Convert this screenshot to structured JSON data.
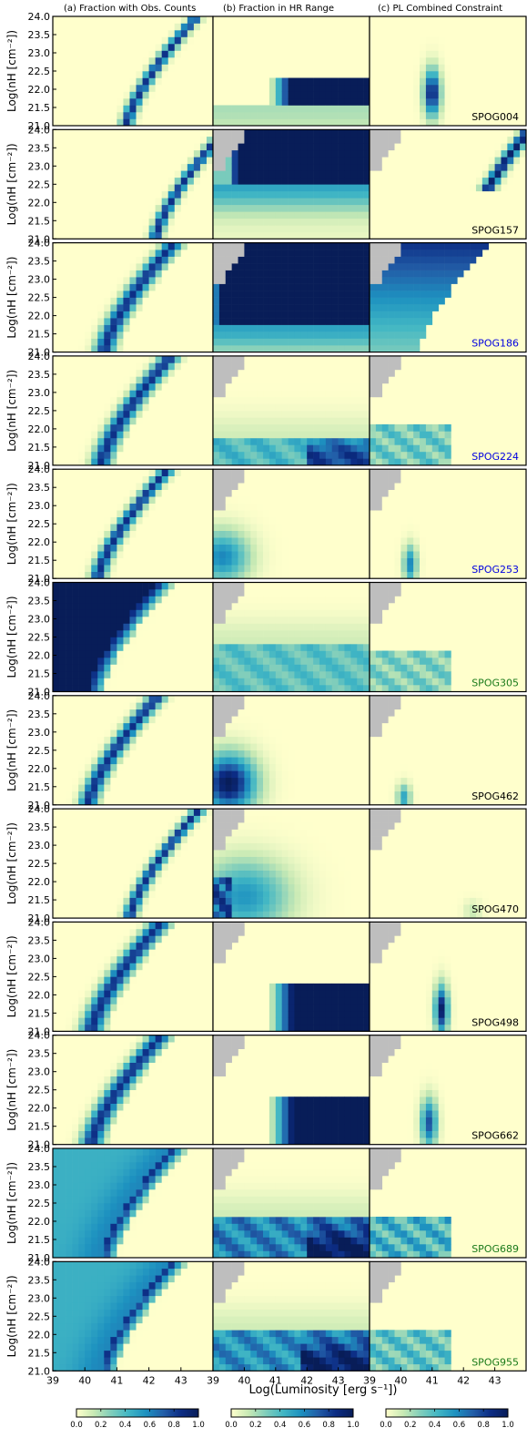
{
  "column_titles": [
    "(a) Fraction with Obs. Counts",
    "(b) Fraction in HR Range",
    "(c) PL Combined Constraint"
  ],
  "ylabel": "Log(nH [cm⁻²])",
  "xlabel": "Log(Luminosity [erg s⁻¹])",
  "colors": {
    "colormap": [
      "#ffffcc",
      "#c7e9b4",
      "#7fcdbb",
      "#41b6c4",
      "#1d91c0",
      "#225ea8",
      "#0c2c84",
      "#081d58"
    ],
    "masked": "#bebebe",
    "label_black": "#000000",
    "label_blue": "#0000e0",
    "label_green": "#1a7a1a"
  },
  "chart_data": {
    "type": "heatmap",
    "x_range": [
      39.0,
      44.0
    ],
    "y_range": [
      21.0,
      24.0
    ],
    "x_ticks": [
      "39",
      "40",
      "41",
      "42",
      "43"
    ],
    "y_ticks": [
      "21.0",
      "21.5",
      "22.0",
      "22.5",
      "23.0",
      "23.5",
      "24.0"
    ],
    "colorbar_range": [
      0.0,
      1.0
    ],
    "colorbar_ticks": [
      "0.0",
      "0.2",
      "0.4",
      "0.6",
      "0.8",
      "1.0"
    ],
    "sources": [
      {
        "name": "SPOG004",
        "label_color": "black"
      },
      {
        "name": "SPOG157",
        "label_color": "black"
      },
      {
        "name": "SPOG186",
        "label_color": "blue"
      },
      {
        "name": "SPOG224",
        "label_color": "blue"
      },
      {
        "name": "SPOG253",
        "label_color": "blue"
      },
      {
        "name": "SPOG305",
        "label_color": "green"
      },
      {
        "name": "SPOG462",
        "label_color": "black"
      },
      {
        "name": "SPOG470",
        "label_color": "black"
      },
      {
        "name": "SPOG498",
        "label_color": "black"
      },
      {
        "name": "SPOG662",
        "label_color": "black"
      },
      {
        "name": "SPOG689",
        "label_color": "green"
      },
      {
        "name": "SPOG955",
        "label_color": "green"
      }
    ]
  }
}
